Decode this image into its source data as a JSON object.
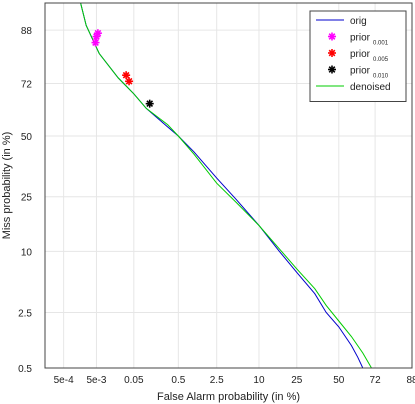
{
  "chart_data": {
    "type": "line",
    "title": "",
    "xlabel": "False Alarm probability (in %)",
    "ylabel": "Miss probability (in %)",
    "scale": "normal-deviate (DET)",
    "grid": true,
    "legend_position": "top-right",
    "x_ticks": [
      {
        "value": 0.0005,
        "label": "5e-4"
      },
      {
        "value": 0.005,
        "label": "5e-3"
      },
      {
        "value": 0.05,
        "label": "0.05"
      },
      {
        "value": 0.5,
        "label": "0.5"
      },
      {
        "value": 2.5,
        "label": "2.5"
      },
      {
        "value": 10,
        "label": "10"
      },
      {
        "value": 25,
        "label": "25"
      },
      {
        "value": 50,
        "label": "50"
      },
      {
        "value": 72,
        "label": "72"
      },
      {
        "value": 88,
        "label": "88"
      }
    ],
    "y_ticks": [
      {
        "value": 0.5,
        "label": "0.5"
      },
      {
        "value": 2.5,
        "label": "2.5"
      },
      {
        "value": 10,
        "label": "10"
      },
      {
        "value": 25,
        "label": "25"
      },
      {
        "value": 50,
        "label": "50"
      },
      {
        "value": 72,
        "label": "72"
      },
      {
        "value": 88,
        "label": "88"
      }
    ],
    "xlim": [
      0.00012,
      88
    ],
    "ylim": [
      0.5,
      93
    ],
    "series": [
      {
        "name": "orig",
        "color": "#0000cc",
        "points": [
          [
            0.0017,
            93
          ],
          [
            0.0025,
            89
          ],
          [
            0.006,
            82
          ],
          [
            0.02,
            74
          ],
          [
            0.05,
            68
          ],
          [
            0.1,
            62
          ],
          [
            0.3,
            54
          ],
          [
            0.5,
            50
          ],
          [
            1,
            43
          ],
          [
            2.5,
            32
          ],
          [
            5,
            24
          ],
          [
            10,
            16
          ],
          [
            17,
            10
          ],
          [
            25,
            6.5
          ],
          [
            35,
            4
          ],
          [
            42,
            2.5
          ],
          [
            50,
            1.7
          ],
          [
            58,
            1
          ],
          [
            62,
            0.7
          ],
          [
            65,
            0.5
          ]
        ]
      },
      {
        "name": "denoised",
        "color": "#00cc00",
        "points": [
          [
            0.0017,
            93
          ],
          [
            0.0025,
            89
          ],
          [
            0.006,
            82
          ],
          [
            0.02,
            74
          ],
          [
            0.05,
            68
          ],
          [
            0.1,
            62
          ],
          [
            0.3,
            55
          ],
          [
            0.5,
            50
          ],
          [
            1,
            42
          ],
          [
            2.5,
            30
          ],
          [
            5,
            23
          ],
          [
            10,
            16
          ],
          [
            17,
            10.5
          ],
          [
            25,
            7
          ],
          [
            35,
            4.5
          ],
          [
            42,
            3
          ],
          [
            50,
            2
          ],
          [
            58,
            1.3
          ],
          [
            65,
            0.8
          ],
          [
            70,
            0.5
          ]
        ]
      },
      {
        "name": "prior 0.001",
        "name_main": "prior",
        "name_sub": "0.001",
        "marker": "star",
        "color": "#ff00ff",
        "points": [
          [
            0.0047,
            85
          ],
          [
            0.005,
            86.5
          ],
          [
            0.0055,
            87.3
          ]
        ]
      },
      {
        "name": "prior 0.005",
        "name_main": "prior",
        "name_sub": "0.005",
        "marker": "star",
        "color": "#ff0000",
        "points": [
          [
            0.032,
            75
          ],
          [
            0.038,
            72.8
          ]
        ]
      },
      {
        "name": "prior 0.010",
        "name_main": "prior",
        "name_sub": "0.010",
        "marker": "star",
        "color": "#000000",
        "points": [
          [
            0.12,
            64
          ]
        ]
      }
    ]
  }
}
